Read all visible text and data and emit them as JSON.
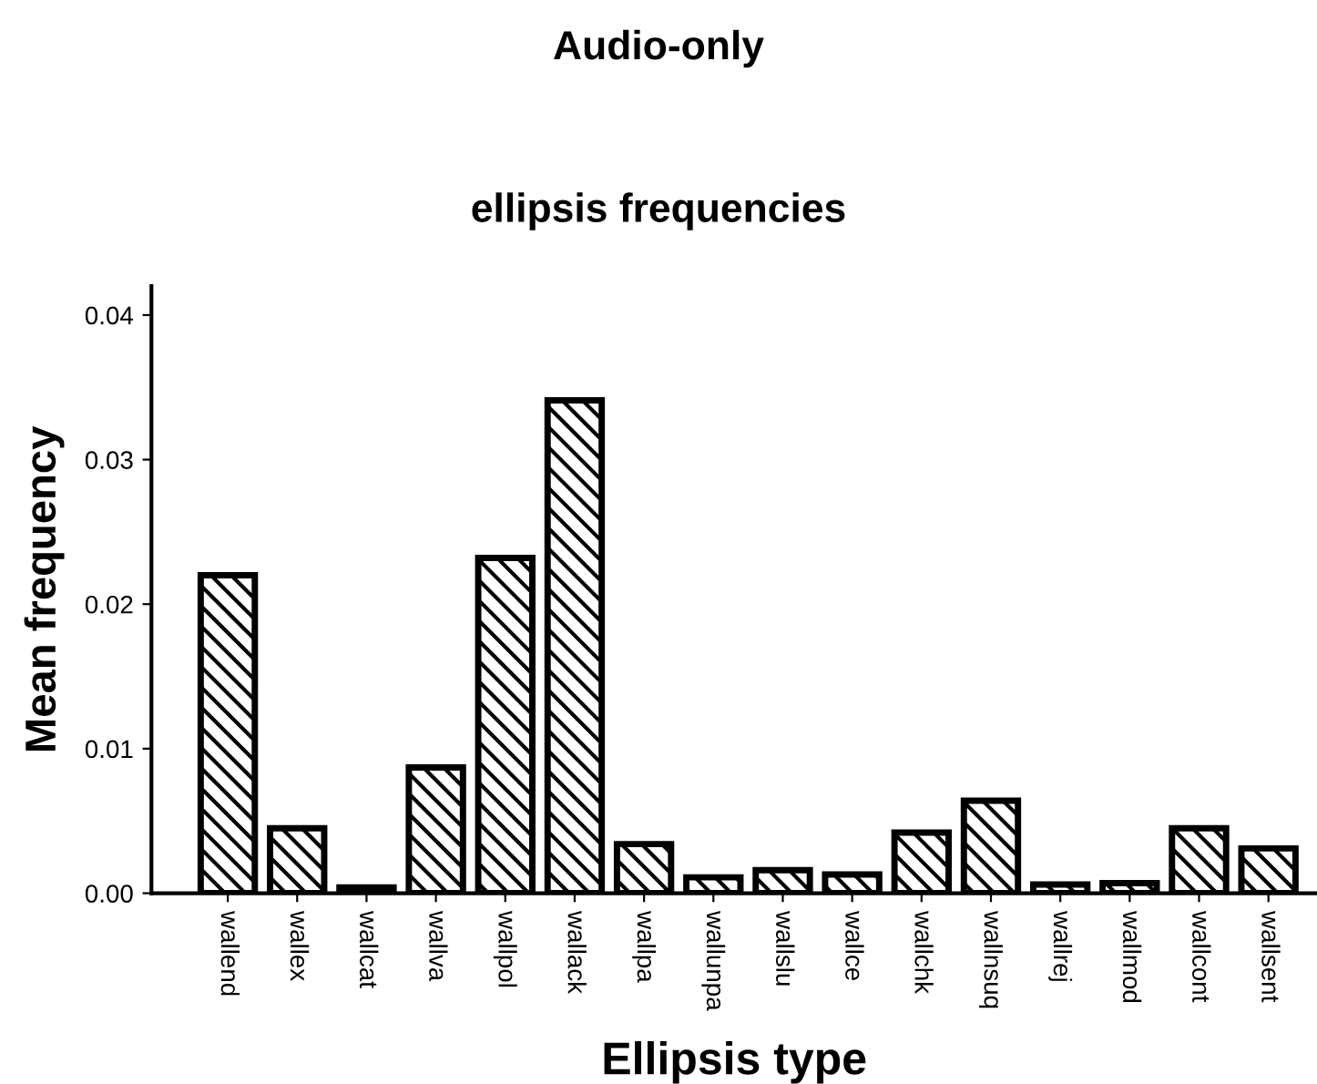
{
  "chart_data": {
    "type": "bar",
    "title": "Audio-only",
    "subtitle": "ellipsis frequencies",
    "xlabel": "Ellipsis type",
    "ylabel": "Mean frequency",
    "categories": [
      "wallend",
      "wallex",
      "wallcat",
      "wallva",
      "wallpol",
      "wallack",
      "wallpa",
      "wallunpa",
      "wallslu",
      "wallce",
      "wallchk",
      "wallnsuq",
      "wallrej",
      "wallmod",
      "wallcont",
      "wallsent"
    ],
    "values": [
      0.022,
      0.0045,
      0.0004,
      0.0087,
      0.0232,
      0.0341,
      0.0034,
      0.0011,
      0.0016,
      0.0013,
      0.0042,
      0.0064,
      0.0006,
      0.0007,
      0.0045,
      0.0031
    ],
    "color": "#000000",
    "ylim": [
      0,
      0.042
    ],
    "yticks": [
      {
        "value": 0,
        "label": "0.00"
      },
      {
        "value": 0.01,
        "label": "0.01"
      },
      {
        "value": 0.02,
        "label": "0.02"
      },
      {
        "value": 0.03,
        "label": "0.03"
      },
      {
        "value": 0.04,
        "label": "0.04"
      }
    ],
    "grid": false,
    "legend": false
  }
}
